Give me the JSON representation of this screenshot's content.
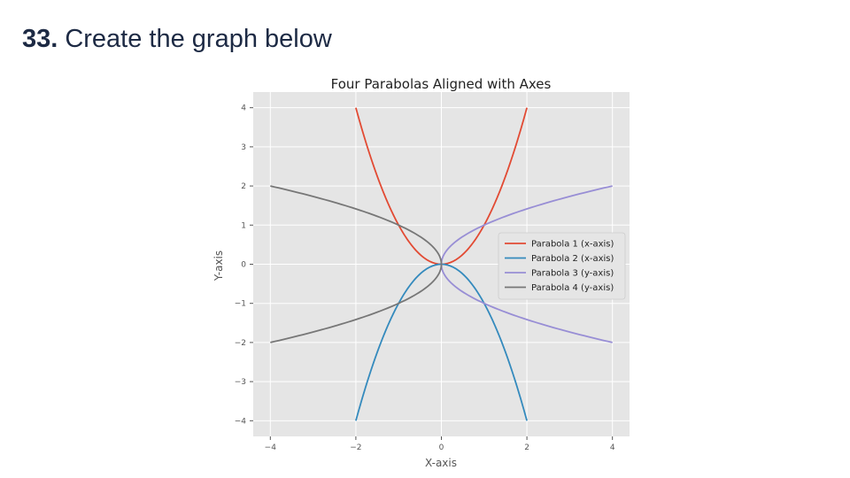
{
  "slide": {
    "question_number": "33.",
    "question_text": "Create the graph below"
  },
  "colors": {
    "background": "#ffffff",
    "heading": "#1d2a44",
    "plot_background": "#e5e5e5",
    "grid": "#ffffff",
    "tick_text": "#555555"
  },
  "chart_data": {
    "type": "line",
    "title": "Four Parabolas Aligned with Axes",
    "xlabel": "X-axis",
    "ylabel": "Y-axis",
    "xlim": [
      -4.4,
      4.4
    ],
    "ylim": [
      -4.4,
      4.4
    ],
    "xticks": [
      -4,
      -2,
      0,
      2,
      4
    ],
    "xtick_labels": [
      "−4",
      "−2",
      "0",
      "2",
      "4"
    ],
    "yticks": [
      -4,
      -3,
      -2,
      -1,
      0,
      1,
      2,
      3,
      4
    ],
    "ytick_labels": [
      "−4",
      "−3",
      "−2",
      "−1",
      "0",
      "1",
      "2",
      "3",
      "4"
    ],
    "grid": true,
    "legend_position": "center-right",
    "series": [
      {
        "name": "Parabola 1 (x-axis)",
        "color": "#e24a33",
        "equation": "y = x^2",
        "x_range": [
          -2,
          2
        ],
        "points": [
          [
            -2,
            4
          ],
          [
            -1.5,
            2.25
          ],
          [
            -1,
            1
          ],
          [
            -0.5,
            0.25
          ],
          [
            0,
            0
          ],
          [
            0.5,
            0.25
          ],
          [
            1,
            1
          ],
          [
            1.5,
            2.25
          ],
          [
            2,
            4
          ]
        ]
      },
      {
        "name": "Parabola 2 (x-axis)",
        "color": "#348abd",
        "equation": "y = -x^2",
        "x_range": [
          -2,
          2
        ],
        "points": [
          [
            -2,
            -4
          ],
          [
            -1.5,
            -2.25
          ],
          [
            -1,
            -1
          ],
          [
            -0.5,
            -0.25
          ],
          [
            0,
            0
          ],
          [
            0.5,
            -0.25
          ],
          [
            1,
            -1
          ],
          [
            1.5,
            -2.25
          ],
          [
            2,
            -4
          ]
        ]
      },
      {
        "name": "Parabola 3 (y-axis)",
        "color": "#988ed5",
        "equation": "x = y^2",
        "y_range": [
          -2,
          2
        ],
        "points": [
          [
            4,
            -2
          ],
          [
            2.25,
            -1.5
          ],
          [
            1,
            -1
          ],
          [
            0.25,
            -0.5
          ],
          [
            0,
            0
          ],
          [
            0.25,
            0.5
          ],
          [
            1,
            1
          ],
          [
            2.25,
            1.5
          ],
          [
            4,
            2
          ]
        ]
      },
      {
        "name": "Parabola 4 (y-axis)",
        "color": "#777777",
        "equation": "x = -y^2",
        "y_range": [
          -2,
          2
        ],
        "points": [
          [
            -4,
            -2
          ],
          [
            -2.25,
            -1.5
          ],
          [
            -1,
            -1
          ],
          [
            -0.25,
            -0.5
          ],
          [
            0,
            0
          ],
          [
            -0.25,
            0.5
          ],
          [
            -1,
            1
          ],
          [
            -2.25,
            1.5
          ],
          [
            -4,
            2
          ]
        ]
      }
    ]
  }
}
